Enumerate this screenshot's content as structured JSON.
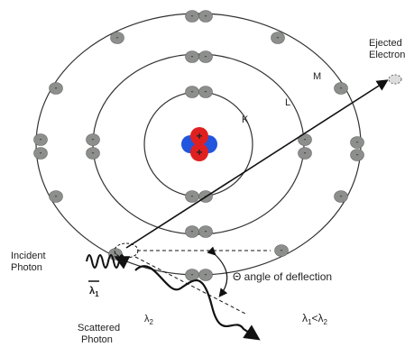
{
  "shells": {
    "K": "K",
    "L": "L",
    "M": "M"
  },
  "nucleus_sign": "+",
  "electron_sign": "-",
  "ejected_electron": {
    "line1": "Ejected",
    "line2": "Electron"
  },
  "incident_photon": {
    "line1": "Incident",
    "line2": "Photon",
    "wavelength": "λ",
    "subscript": "1"
  },
  "angle_label": "Θ angle of deflection",
  "scattered_photon": {
    "line1": "Scattered",
    "line2": "Photon",
    "wavelength": "λ",
    "subscript": "2"
  },
  "relation": {
    "left": "λ",
    "left_sub": "1",
    "op": "<",
    "right": "λ",
    "right_sub": "2"
  }
}
